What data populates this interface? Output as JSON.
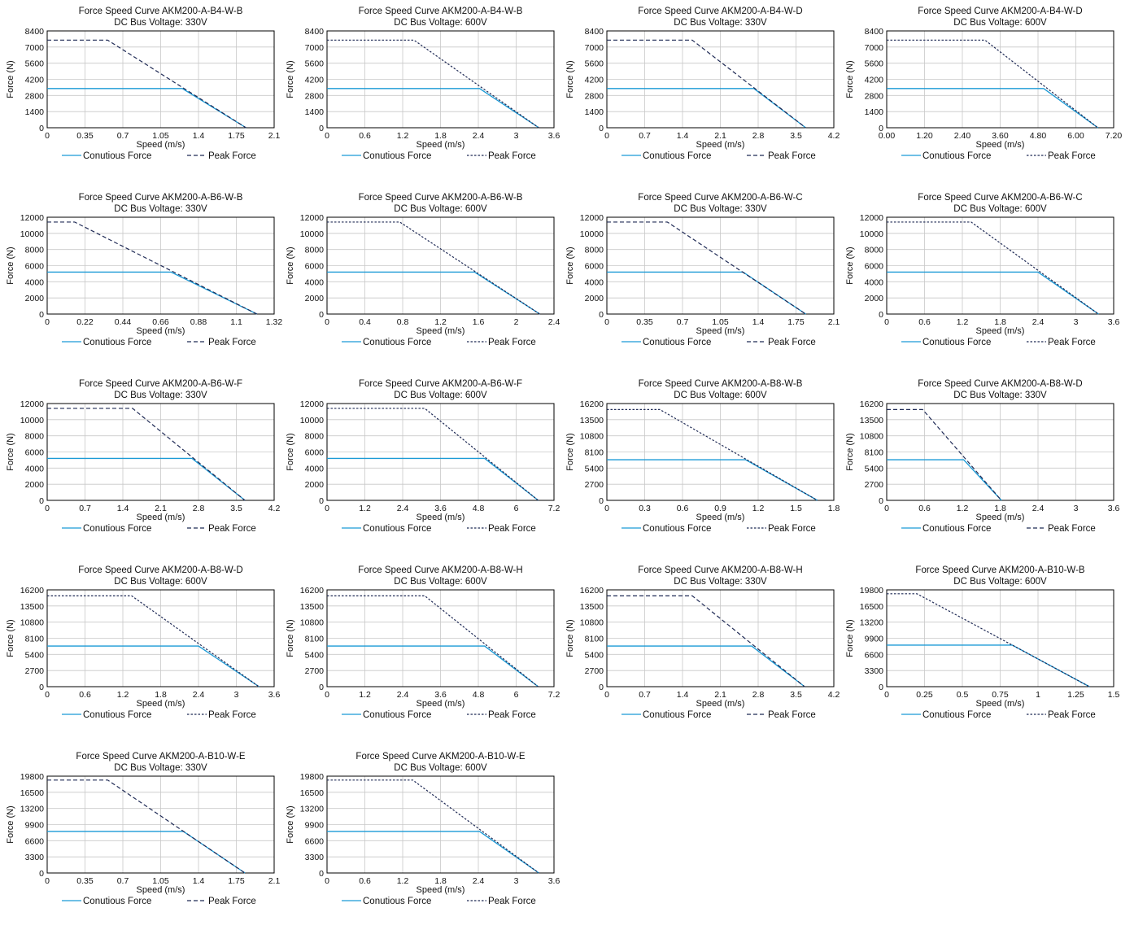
{
  "colors": {
    "continuous": "#1a9ad6",
    "peak": "#1f2a55",
    "grid": "#c8c8c8",
    "axes": "#000000"
  },
  "legend": {
    "continuous": "Conutious Force",
    "peak": "Peak Force"
  },
  "chart_data": [
    {
      "type": "line",
      "title": "Force Speed Curve AKM200-A-B4-W-B",
      "subtitle": "DC Bus Voltage: 330V",
      "xlabel": "Speed (m/s)",
      "ylabel": "Force (N)",
      "xticks": [
        "0",
        "0.35",
        "0.7",
        "1.05",
        "1.4",
        "1.75",
        "2.1"
      ],
      "yticks": [
        "0",
        "1400",
        "2800",
        "4200",
        "5600",
        "7000",
        "8400"
      ],
      "xlim": [
        0,
        2.1
      ],
      "ylim": [
        0,
        8400
      ],
      "peak_dash": "dash",
      "series": [
        {
          "name": "Conutious Force",
          "x": [
            0,
            1.25,
            1.84
          ],
          "y": [
            3400,
            3400,
            0
          ]
        },
        {
          "name": "Peak Force",
          "x": [
            0,
            0.56,
            1.84
          ],
          "y": [
            7600,
            7600,
            0
          ]
        }
      ]
    },
    {
      "type": "line",
      "title": "Force Speed Curve AKM200-A-B4-W-B",
      "subtitle": "DC Bus Voltage: 600V",
      "xlabel": "Speed (m/s)",
      "ylabel": "Force (N)",
      "xticks": [
        "0",
        "0.6",
        "1.2",
        "1.8",
        "2.4",
        "3",
        "3.6"
      ],
      "yticks": [
        "0",
        "1400",
        "2800",
        "4200",
        "5600",
        "7000",
        "8400"
      ],
      "xlim": [
        0,
        3.6
      ],
      "ylim": [
        0,
        8400
      ],
      "peak_dash": "dot",
      "series": [
        {
          "name": "Conutious Force",
          "x": [
            0,
            2.42,
            3.36
          ],
          "y": [
            3400,
            3400,
            0
          ]
        },
        {
          "name": "Peak Force",
          "x": [
            0,
            1.38,
            3.36
          ],
          "y": [
            7600,
            7600,
            0
          ]
        }
      ]
    },
    {
      "type": "line",
      "title": "Force Speed Curve AKM200-A-B4-W-D",
      "subtitle": "DC Bus Voltage: 330V",
      "xlabel": "Speed (m/s)",
      "ylabel": "Force (N)",
      "xticks": [
        "0",
        "0.7",
        "1.4",
        "2.1",
        "2.8",
        "3.5",
        "4.2"
      ],
      "yticks": [
        "0",
        "1400",
        "2800",
        "4200",
        "5600",
        "7000",
        "8400"
      ],
      "xlim": [
        0,
        4.2
      ],
      "ylim": [
        0,
        8400
      ],
      "peak_dash": "dash",
      "series": [
        {
          "name": "Conutious Force",
          "x": [
            0,
            2.72,
            3.68
          ],
          "y": [
            3400,
            3400,
            0
          ]
        },
        {
          "name": "Peak Force",
          "x": [
            0,
            1.58,
            3.68
          ],
          "y": [
            7600,
            7600,
            0
          ]
        }
      ]
    },
    {
      "type": "line",
      "title": "Force Speed Curve AKM200-A-B4-W-D",
      "subtitle": "DC Bus Voltage: 600V",
      "xlabel": "Speed (m/s)",
      "ylabel": "Force (N)",
      "xticks": [
        "0.00",
        "1.20",
        "2.40",
        "3.60",
        "4.80",
        "6.00",
        "7.20"
      ],
      "yticks": [
        "0",
        "1400",
        "2800",
        "4200",
        "5600",
        "7000",
        "8400"
      ],
      "xlim": [
        0,
        7.2
      ],
      "ylim": [
        0,
        8400
      ],
      "peak_dash": "dot",
      "series": [
        {
          "name": "Conutious Force",
          "x": [
            0,
            4.98,
            6.7
          ],
          "y": [
            3400,
            3400,
            0
          ]
        },
        {
          "name": "Peak Force",
          "x": [
            0,
            3.12,
            6.7
          ],
          "y": [
            7600,
            7600,
            0
          ]
        }
      ]
    },
    {
      "type": "line",
      "title": "Force Speed Curve AKM200-A-B6-W-B",
      "subtitle": "DC Bus Voltage: 330V",
      "xlabel": "Speed (m/s)",
      "ylabel": "Force (N)",
      "xticks": [
        "0",
        "0.22",
        "0.44",
        "0.66",
        "0.88",
        "1.1",
        "1.32"
      ],
      "yticks": [
        "0",
        "2000",
        "4000",
        "6000",
        "8000",
        "10000",
        "12000"
      ],
      "xlim": [
        0,
        1.32
      ],
      "ylim": [
        0,
        12000
      ],
      "peak_dash": "dash",
      "series": [
        {
          "name": "Conutious Force",
          "x": [
            0,
            0.72,
            1.22
          ],
          "y": [
            5200,
            5200,
            0
          ]
        },
        {
          "name": "Peak Force",
          "x": [
            0,
            0.16,
            1.22
          ],
          "y": [
            11400,
            11400,
            0
          ]
        }
      ]
    },
    {
      "type": "line",
      "title": "Force Speed Curve AKM200-A-B6-W-B",
      "subtitle": "DC Bus Voltage: 600V",
      "xlabel": "Speed (m/s)",
      "ylabel": "Force (N)",
      "xticks": [
        "0",
        "0.4",
        "0.8",
        "1.2",
        "1.6",
        "2",
        "2.4"
      ],
      "yticks": [
        "0",
        "2000",
        "4000",
        "6000",
        "8000",
        "10000",
        "12000"
      ],
      "xlim": [
        0,
        2.4
      ],
      "ylim": [
        0,
        12000
      ],
      "peak_dash": "dot",
      "series": [
        {
          "name": "Conutious Force",
          "x": [
            0,
            1.56,
            2.25
          ],
          "y": [
            5200,
            5200,
            0
          ]
        },
        {
          "name": "Peak Force",
          "x": [
            0,
            0.77,
            2.25
          ],
          "y": [
            11400,
            11400,
            0
          ]
        }
      ]
    },
    {
      "type": "line",
      "title": "Force Speed Curve AKM200-A-B6-W-C",
      "subtitle": "DC Bus Voltage: 330V",
      "xlabel": "Speed (m/s)",
      "ylabel": "Force (N)",
      "xticks": [
        "0",
        "0.35",
        "0.7",
        "1.05",
        "1.4",
        "1.75",
        "2.1"
      ],
      "yticks": [
        "0",
        "2000",
        "4000",
        "6000",
        "8000",
        "10000",
        "12000"
      ],
      "xlim": [
        0,
        2.1
      ],
      "ylim": [
        0,
        12000
      ],
      "peak_dash": "dash",
      "series": [
        {
          "name": "Conutious Force",
          "x": [
            0,
            1.26,
            1.84
          ],
          "y": [
            5200,
            5200,
            0
          ]
        },
        {
          "name": "Peak Force",
          "x": [
            0,
            0.56,
            1.84
          ],
          "y": [
            11400,
            11400,
            0
          ]
        }
      ]
    },
    {
      "type": "line",
      "title": "Force Speed Curve AKM200-A-B6-W-C",
      "subtitle": "DC Bus Voltage: 600V",
      "xlabel": "Speed (m/s)",
      "ylabel": "Force (N)",
      "xticks": [
        "0",
        "0.6",
        "1.2",
        "1.8",
        "2.4",
        "3",
        "3.6"
      ],
      "yticks": [
        "0",
        "2000",
        "4000",
        "6000",
        "8000",
        "10000",
        "12000"
      ],
      "xlim": [
        0,
        3.6
      ],
      "ylim": [
        0,
        12000
      ],
      "peak_dash": "dot",
      "series": [
        {
          "name": "Conutious Force",
          "x": [
            0,
            2.4,
            3.36
          ],
          "y": [
            5200,
            5200,
            0
          ]
        },
        {
          "name": "Peak Force",
          "x": [
            0,
            1.34,
            3.36
          ],
          "y": [
            11400,
            11400,
            0
          ]
        }
      ]
    },
    {
      "type": "line",
      "title": "Force Speed Curve AKM200-A-B6-W-F",
      "subtitle": "DC Bus Voltage: 330V",
      "xlabel": "Speed (m/s)",
      "ylabel": "Force (N)",
      "xticks": [
        "0",
        "0.7",
        "1.4",
        "2.1",
        "2.8",
        "3.5",
        "4.2"
      ],
      "yticks": [
        "0",
        "2000",
        "4000",
        "6000",
        "8000",
        "10000",
        "12000"
      ],
      "xlim": [
        0,
        4.2
      ],
      "ylim": [
        0,
        12000
      ],
      "peak_dash": "dash",
      "series": [
        {
          "name": "Conutious Force",
          "x": [
            0,
            2.68,
            3.66
          ],
          "y": [
            5200,
            5200,
            0
          ]
        },
        {
          "name": "Peak Force",
          "x": [
            0,
            1.58,
            3.66
          ],
          "y": [
            11400,
            11400,
            0
          ]
        }
      ]
    },
    {
      "type": "line",
      "title": "Force Speed Curve AKM200-A-B6-W-F",
      "subtitle": "DC Bus Voltage: 600V",
      "xlabel": "Speed (m/s)",
      "ylabel": "Force (N)",
      "xticks": [
        "0",
        "1.2",
        "2.4",
        "3.6",
        "4.8",
        "6",
        "7.2"
      ],
      "yticks": [
        "0",
        "2000",
        "4000",
        "6000",
        "8000",
        "10000",
        "12000"
      ],
      "xlim": [
        0,
        7.2
      ],
      "ylim": [
        0,
        12000
      ],
      "peak_dash": "dot",
      "series": [
        {
          "name": "Conutious Force",
          "x": [
            0,
            5.0,
            6.7
          ],
          "y": [
            5200,
            5200,
            0
          ]
        },
        {
          "name": "Peak Force",
          "x": [
            0,
            3.1,
            6.7
          ],
          "y": [
            11400,
            11400,
            0
          ]
        }
      ]
    },
    {
      "type": "line",
      "title": "Force Speed Curve AKM200-A-B8-W-B",
      "subtitle": "DC Bus Voltage: 600V",
      "xlabel": "Speed (m/s)",
      "ylabel": "Force (N)",
      "xticks": [
        "0",
        "0.3",
        "0.6",
        "0.9",
        "1.2",
        "1.5",
        "1.8"
      ],
      "yticks": [
        "0",
        "2700",
        "5400",
        "8100",
        "10800",
        "13500",
        "16200"
      ],
      "xlim": [
        0,
        1.8
      ],
      "ylim": [
        0,
        16200
      ],
      "peak_dash": "dot",
      "series": [
        {
          "name": "Conutious Force",
          "x": [
            0,
            1.1,
            1.67
          ],
          "y": [
            6800,
            6800,
            0
          ]
        },
        {
          "name": "Peak Force",
          "x": [
            0,
            0.42,
            1.67
          ],
          "y": [
            15200,
            15200,
            0
          ]
        }
      ]
    },
    {
      "type": "line",
      "title": "Force Speed Curve AKM200-A-B8-W-D",
      "subtitle": "DC Bus Voltage: 330V",
      "xlabel": "Speed (m/s)",
      "ylabel": "Force (N)",
      "xticks": [
        "0",
        "0.6",
        "1.2",
        "1.8",
        "2.4",
        "3",
        "3.6"
      ],
      "yticks": [
        "0",
        "2700",
        "5400",
        "8100",
        "10800",
        "13500",
        "16200"
      ],
      "xlim": [
        0,
        3.6
      ],
      "ylim": [
        0,
        16200
      ],
      "peak_dash": "dash",
      "series": [
        {
          "name": "Conutious Force",
          "x": [
            0,
            1.22,
            1.82
          ],
          "y": [
            6800,
            6800,
            0
          ]
        },
        {
          "name": "Peak Force",
          "x": [
            0,
            0.57,
            1.82
          ],
          "y": [
            15200,
            15200,
            0
          ]
        }
      ]
    },
    {
      "type": "line",
      "title": "Force Speed Curve AKM200-A-B8-W-D",
      "subtitle": "DC Bus Voltage: 600V",
      "xlabel": "Speed (m/s)",
      "ylabel": "Force (N)",
      "xticks": [
        "0",
        "0.6",
        "1.2",
        "1.8",
        "2.4",
        "3",
        "3.6"
      ],
      "yticks": [
        "0",
        "2700",
        "5400",
        "8100",
        "10800",
        "13500",
        "16200"
      ],
      "xlim": [
        0,
        3.6
      ],
      "ylim": [
        0,
        16200
      ],
      "peak_dash": "dot",
      "series": [
        {
          "name": "Conutious Force",
          "x": [
            0,
            2.4,
            3.36
          ],
          "y": [
            6800,
            6800,
            0
          ]
        },
        {
          "name": "Peak Force",
          "x": [
            0,
            1.34,
            3.36
          ],
          "y": [
            15200,
            15200,
            0
          ]
        }
      ]
    },
    {
      "type": "line",
      "title": "Force Speed Curve AKM200-A-B8-W-H",
      "subtitle": "DC Bus Voltage: 600V",
      "xlabel": "Speed (m/s)",
      "ylabel": "Force (N)",
      "xticks": [
        "0",
        "1.2",
        "2.4",
        "3.6",
        "4.8",
        "6",
        "7.2"
      ],
      "yticks": [
        "0",
        "2700",
        "5400",
        "8100",
        "10800",
        "13500",
        "16200"
      ],
      "xlim": [
        0,
        7.2
      ],
      "ylim": [
        0,
        16200
      ],
      "peak_dash": "dot",
      "series": [
        {
          "name": "Conutious Force",
          "x": [
            0,
            5.0,
            6.7
          ],
          "y": [
            6800,
            6800,
            0
          ]
        },
        {
          "name": "Peak Force",
          "x": [
            0,
            3.1,
            6.7
          ],
          "y": [
            15200,
            15200,
            0
          ]
        }
      ]
    },
    {
      "type": "line",
      "title": "Force Speed Curve AKM200-A-B8-W-H",
      "subtitle": "DC Bus Voltage: 330V",
      "xlabel": "Speed (m/s)",
      "ylabel": "Force (N)",
      "xticks": [
        "0",
        "0.7",
        "1.4",
        "2.1",
        "2.8",
        "3.5",
        "4.2"
      ],
      "yticks": [
        "0",
        "2700",
        "5400",
        "8100",
        "10800",
        "13500",
        "16200"
      ],
      "xlim": [
        0,
        4.2
      ],
      "ylim": [
        0,
        16200
      ],
      "peak_dash": "dash",
      "series": [
        {
          "name": "Conutious Force",
          "x": [
            0,
            2.68,
            3.66
          ],
          "y": [
            6800,
            6800,
            0
          ]
        },
        {
          "name": "Peak Force",
          "x": [
            0,
            1.58,
            3.66
          ],
          "y": [
            15200,
            15200,
            0
          ]
        }
      ]
    },
    {
      "type": "line",
      "title": "Force Speed Curve AKM200-A-B10-W-B",
      "subtitle": "DC Bus Voltage: 600V",
      "xlabel": "Speed (m/s)",
      "ylabel": "Force (N)",
      "xticks": [
        "0",
        "0.25",
        "0.5",
        "0.75",
        "1",
        "1.25",
        "1.5"
      ],
      "yticks": [
        "0",
        "3300",
        "6600",
        "9900",
        "13200",
        "16500",
        "19800"
      ],
      "xlim": [
        0,
        1.5
      ],
      "ylim": [
        0,
        19800
      ],
      "peak_dash": "dot",
      "series": [
        {
          "name": "Conutious Force",
          "x": [
            0,
            0.83,
            1.34
          ],
          "y": [
            8500,
            8500,
            0
          ]
        },
        {
          "name": "Peak Force",
          "x": [
            0,
            0.2,
            1.34
          ],
          "y": [
            19000,
            19000,
            0
          ]
        }
      ]
    },
    {
      "type": "line",
      "title": "Force Speed Curve AKM200-A-B10-W-E",
      "subtitle": "DC Bus Voltage: 330V",
      "xlabel": "Speed (m/s)",
      "ylabel": "Force (N)",
      "xticks": [
        "0",
        "0.35",
        "0.7",
        "1.05",
        "1.4",
        "1.75",
        "2.1"
      ],
      "yticks": [
        "0",
        "3300",
        "6600",
        "9900",
        "13200",
        "16500",
        "19800"
      ],
      "xlim": [
        0,
        2.1
      ],
      "ylim": [
        0,
        19800
      ],
      "peak_dash": "dash",
      "series": [
        {
          "name": "Conutious Force",
          "x": [
            0,
            1.26,
            1.83
          ],
          "y": [
            8500,
            8500,
            0
          ]
        },
        {
          "name": "Peak Force",
          "x": [
            0,
            0.56,
            1.83
          ],
          "y": [
            19000,
            19000,
            0
          ]
        }
      ]
    },
    {
      "type": "line",
      "title": "Force Speed Curve AKM200-A-B10-W-E",
      "subtitle": "DC Bus Voltage: 600V",
      "xlabel": "Speed (m/s)",
      "ylabel": "Force (N)",
      "xticks": [
        "0",
        "0.6",
        "1.2",
        "1.8",
        "2.4",
        "3",
        "3.6"
      ],
      "yticks": [
        "0",
        "3300",
        "6600",
        "9900",
        "13200",
        "16500",
        "19800"
      ],
      "xlim": [
        0,
        3.6
      ],
      "ylim": [
        0,
        19800
      ],
      "peak_dash": "dot",
      "series": [
        {
          "name": "Conutious Force",
          "x": [
            0,
            2.42,
            3.36
          ],
          "y": [
            8500,
            8500,
            0
          ]
        },
        {
          "name": "Peak Force",
          "x": [
            0,
            1.36,
            3.36
          ],
          "y": [
            19000,
            19000,
            0
          ]
        }
      ]
    }
  ]
}
